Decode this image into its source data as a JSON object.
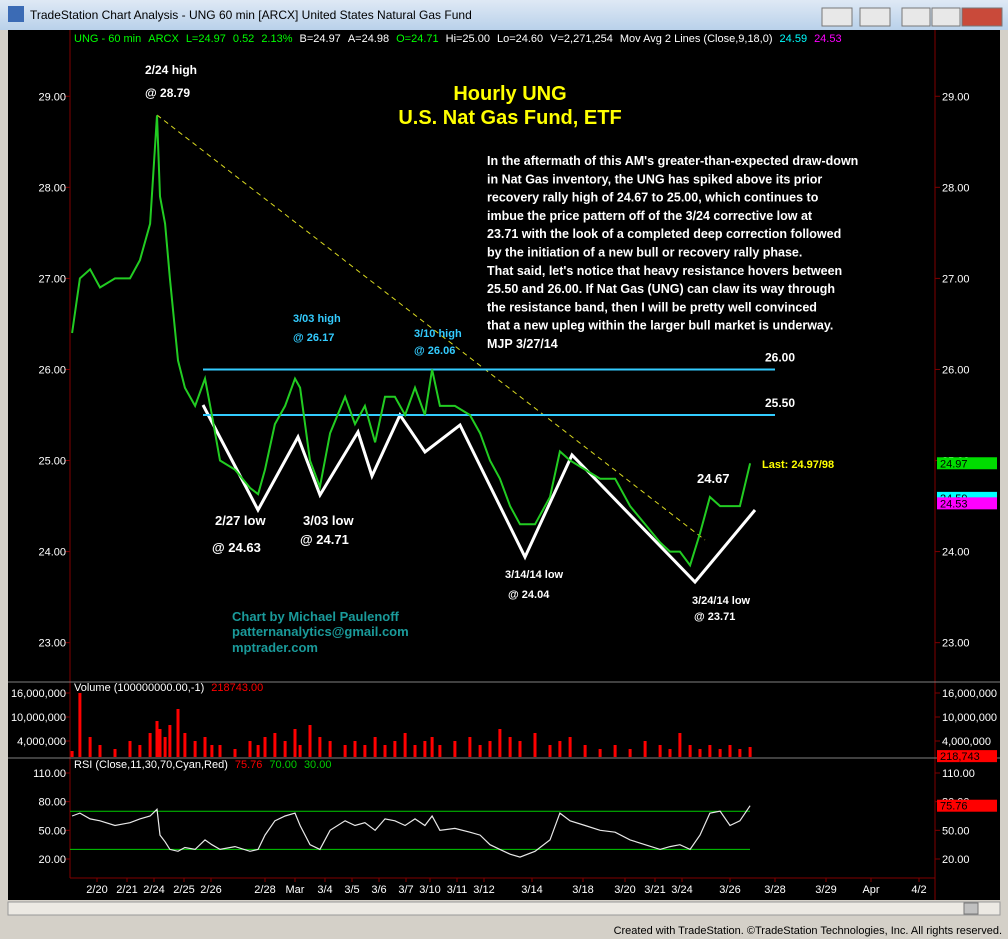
{
  "window_title": "TradeStation Chart Analysis - UNG 60 min [ARCX] United States Natural Gas Fund",
  "footer": "Created with TradeStation. ©TradeStation Technologies, Inc. All rights reserved.",
  "chart_data": [
    {
      "type": "line",
      "color": "#22cc22",
      "header": [
        {
          "text": "UNG - 60 min",
          "color": "#00ff00"
        },
        {
          "text": "ARCX",
          "color": "#00ff00"
        },
        {
          "text": "L=24.97",
          "color": "#00ff00"
        },
        {
          "text": "0.52",
          "color": "#00ff00"
        },
        {
          "text": "2.13%",
          "color": "#00ff00"
        },
        {
          "text": "B=24.97",
          "color": "#ffffff"
        },
        {
          "text": "A=24.98",
          "color": "#ffffff"
        },
        {
          "text": "O=24.71",
          "color": "#00ff00"
        },
        {
          "text": "Hi=25.00",
          "color": "#ffffff"
        },
        {
          "text": "Lo=24.60",
          "color": "#ffffff"
        },
        {
          "text": "V=2,271,254",
          "color": "#ffffff"
        },
        {
          "text": "Mov Avg 2 Lines (Close,9,18,0)",
          "color": "#ffffff"
        },
        {
          "text": "24.59",
          "color": "#00ffff"
        },
        {
          "text": "24.53",
          "color": "#ff00ff"
        }
      ],
      "xlim": [
        0,
        288
      ],
      "x": [
        0.7,
        3.3,
        6.7,
        10,
        15,
        20,
        23.3,
        26.7,
        29,
        30,
        31.7,
        33.3,
        36,
        38.3,
        41.7,
        45,
        47.3,
        50,
        55,
        60,
        62.7,
        65,
        68.3,
        71.7,
        75,
        76.7,
        80,
        83.3,
        86.7,
        91.7,
        95,
        98.3,
        101.7,
        105,
        108.3,
        111.7,
        115,
        118.3,
        120.7,
        123.3,
        128.3,
        133.3,
        136.7,
        140,
        143.3,
        146.7,
        150,
        155,
        160,
        163.3,
        166.7,
        171.7,
        176.7,
        181.7,
        186.7,
        191.7,
        196.7,
        200,
        203.3,
        206.7,
        210,
        213.3,
        216.7,
        220,
        223.3,
        226.7
      ],
      "values": [
        26.4,
        27.0,
        27.1,
        26.9,
        27.0,
        27.0,
        27.2,
        27.6,
        28.79,
        27.9,
        27.6,
        27.0,
        26.1,
        25.8,
        25.6,
        25.9,
        25.5,
        25.0,
        24.9,
        24.7,
        24.63,
        24.9,
        25.4,
        25.6,
        25.9,
        25.8,
        25.0,
        24.71,
        25.3,
        25.7,
        25.4,
        25.6,
        25.2,
        25.7,
        25.7,
        25.5,
        25.8,
        25.5,
        26.0,
        25.6,
        25.6,
        25.5,
        25.3,
        25.0,
        24.8,
        24.5,
        24.3,
        24.3,
        24.6,
        25.1,
        25.0,
        24.9,
        24.8,
        24.8,
        24.5,
        24.3,
        24.1,
        24.0,
        24.0,
        23.85,
        24.2,
        24.6,
        24.5,
        24.5,
        24.5,
        24.97
      ],
      "ylim": [
        22.59,
        29.53
      ],
      "yticks": [
        {
          "value": 23,
          "label": "23.00"
        },
        {
          "value": 24,
          "label": "24.00"
        },
        {
          "value": 25,
          "label": "25.00"
        },
        {
          "value": 26,
          "label": "26.00"
        },
        {
          "value": 27,
          "label": "27.00"
        },
        {
          "value": 28,
          "label": "28.00"
        },
        {
          "value": 29,
          "label": "29.00"
        }
      ],
      "levels": [
        {
          "value": 26,
          "label": "26.00",
          "color": "#33ccff"
        },
        {
          "value": 25.5,
          "label": "25.50",
          "color": "#33ccff"
        }
      ],
      "markers": [
        {
          "value": 24.97,
          "label": "24.97",
          "color": "#00dd00"
        },
        {
          "value": 24.59,
          "label": "24.59",
          "color": "#00ffff"
        },
        {
          "value": 24.53,
          "label": "24.53",
          "color": "#ff00ff"
        }
      ],
      "annotations": [
        {
          "text": "2/24 high",
          "color": "#ffffff"
        },
        {
          "text": "@ 28.79",
          "color": "#ffffff"
        },
        {
          "text": "Hourly UNG",
          "color": "#ffff00"
        },
        {
          "text": "U.S. Nat Gas Fund, ETF",
          "color": "#ffff00"
        },
        {
          "text": "3/03 high",
          "color": "#33ccff"
        },
        {
          "text": "@ 26.17",
          "color": "#33ccff"
        },
        {
          "text": "3/10 high",
          "color": "#33ccff"
        },
        {
          "text": "@ 26.06",
          "color": "#33ccff"
        },
        {
          "text": "2/27 low",
          "color": "#ffffff"
        },
        {
          "text": "@ 24.63",
          "color": "#ffffff"
        },
        {
          "text": "3/03 low",
          "color": "#ffffff"
        },
        {
          "text": "@ 24.71",
          "color": "#ffffff"
        },
        {
          "text": "3/14/14 low",
          "color": "#ffffff"
        },
        {
          "text": "@ 24.04",
          "color": "#ffffff"
        },
        {
          "text": "3/24/14 low",
          "color": "#ffffff"
        },
        {
          "text": "@ 23.71",
          "color": "#ffffff"
        },
        {
          "text": "24.67",
          "color": "#ffffff"
        },
        {
          "text": "Last: 24.97/98",
          "color": "#ffff00"
        },
        {
          "text": "Chart by Michael Paulenoff",
          "color": "#1a9a9a"
        },
        {
          "text": "patternanalytics@gmail.com",
          "color": "#1a9a9a"
        },
        {
          "text": "mptrader.com",
          "color": "#1a9a9a"
        }
      ],
      "commentary": [
        "In the aftermath of this AM's greater-than-expected draw-down",
        "in Nat Gas inventory, the UNG has spiked above its prior",
        "recovery rally high of 24.67 to 25.00, which continues to",
        "imbue the price pattern off of the 3/24 corrective low at",
        "23.71 with the look of a completed deep correction followed",
        "by the initiation of a new bull or recovery rally phase.",
        "That said, let's notice that heavy resistance hovers between",
        "25.50 and 26.00. If Nat Gas (UNG) can claw its way through",
        "the resistance band, then I will be pretty well convinced",
        "that a new upleg within the larger bull market is underway.",
        "MJP  3/27/14"
      ]
    },
    {
      "type": "bar",
      "color": "#ff0000",
      "header": [
        {
          "text": "Volume (100000000.00,-1)",
          "color": "#ffffff"
        },
        {
          "text": "218743.00",
          "color": "#ff0000"
        }
      ],
      "values": [
        1500000,
        16000000,
        5000000,
        3000000,
        2000000,
        4000000,
        3000000,
        6000000,
        9000000,
        7000000,
        5000000,
        8000000,
        12000000,
        6000000,
        4000000,
        5000000,
        3000000,
        3000000,
        2000000,
        4000000,
        3000000,
        5000000,
        6000000,
        4000000,
        7000000,
        3000000,
        8000000,
        5000000,
        4000000,
        3000000,
        4000000,
        3000000,
        5000000,
        3000000,
        4000000,
        6000000,
        3000000,
        4000000,
        5000000,
        3000000,
        4000000,
        5000000,
        3000000,
        4000000,
        7000000,
        5000000,
        4000000,
        6000000,
        3000000,
        4000000,
        5000000,
        3000000,
        2000000,
        3000000,
        2000000,
        4000000,
        3000000,
        2000000,
        6000000,
        3000000,
        2000000,
        3000000,
        2000000,
        3000000,
        2000000,
        2500000
      ],
      "ylim": [
        0,
        18250000
      ],
      "yticks": [
        {
          "value": 4000000,
          "label": "4,000,000"
        },
        {
          "value": 10000000,
          "label": "10,000,000"
        },
        {
          "value": 16000000,
          "label": "16,000,000"
        }
      ],
      "markers": [
        {
          "value": 218743,
          "label": "218,743",
          "color": "#ff0000"
        }
      ]
    },
    {
      "type": "line",
      "color": "#e8e8e8",
      "header": [
        {
          "text": "RSI (Close,11,30,70,Cyan,Red)",
          "color": "#ffffff"
        },
        {
          "text": "75.76",
          "color": "#ff0000"
        }
      ],
      "values": [
        65,
        68,
        62,
        60,
        55,
        58,
        62,
        65,
        72,
        45,
        38,
        30,
        28,
        32,
        30,
        40,
        35,
        30,
        33,
        28,
        30,
        45,
        60,
        65,
        68,
        55,
        35,
        30,
        50,
        60,
        55,
        58,
        50,
        62,
        60,
        55,
        62,
        55,
        65,
        50,
        52,
        48,
        45,
        35,
        30,
        25,
        22,
        28,
        40,
        68,
        60,
        55,
        50,
        48,
        40,
        35,
        30,
        33,
        35,
        30,
        45,
        68,
        70,
        55,
        60,
        75.76
      ],
      "ylim": [
        0.1,
        123.6
      ],
      "yticks": [
        {
          "value": 20,
          "label": "20.00"
        },
        {
          "value": 50,
          "label": "50.00"
        },
        {
          "value": 80,
          "label": "80.00"
        },
        {
          "value": 110,
          "label": "110.00"
        }
      ],
      "levels": [
        {
          "value": 70,
          "label": "70.00",
          "color": "#00cc00"
        },
        {
          "value": 30,
          "label": "30.00",
          "color": "#00cc00"
        }
      ],
      "markers": [
        {
          "value": 75.76,
          "label": "75.76",
          "color": "#ff0000"
        }
      ],
      "xticks": [
        {
          "value": 9,
          "label": "2/20"
        },
        {
          "value": 19,
          "label": "2/21"
        },
        {
          "value": 28,
          "label": "2/24"
        },
        {
          "value": 38,
          "label": "2/25"
        },
        {
          "value": 47,
          "label": "2/26"
        },
        {
          "value": 65,
          "label": "2/28"
        },
        {
          "value": 75,
          "label": "Mar"
        },
        {
          "value": 85,
          "label": "3/4"
        },
        {
          "value": 94,
          "label": "3/5"
        },
        {
          "value": 103,
          "label": "3/6"
        },
        {
          "value": 112,
          "label": "3/7"
        },
        {
          "value": 120,
          "label": "3/10"
        },
        {
          "value": 129,
          "label": "3/11"
        },
        {
          "value": 138,
          "label": "3/12"
        },
        {
          "value": 154,
          "label": "3/14"
        },
        {
          "value": 171,
          "label": "3/18"
        },
        {
          "value": 185,
          "label": "3/20"
        },
        {
          "value": 195,
          "label": "3/21"
        },
        {
          "value": 204,
          "label": "3/24"
        },
        {
          "value": 220,
          "label": "3/26"
        },
        {
          "value": 235,
          "label": "3/28"
        },
        {
          "value": 252,
          "label": "3/29"
        },
        {
          "value": 267,
          "label": "Apr"
        },
        {
          "value": 283,
          "label": "4/2"
        }
      ]
    }
  ]
}
